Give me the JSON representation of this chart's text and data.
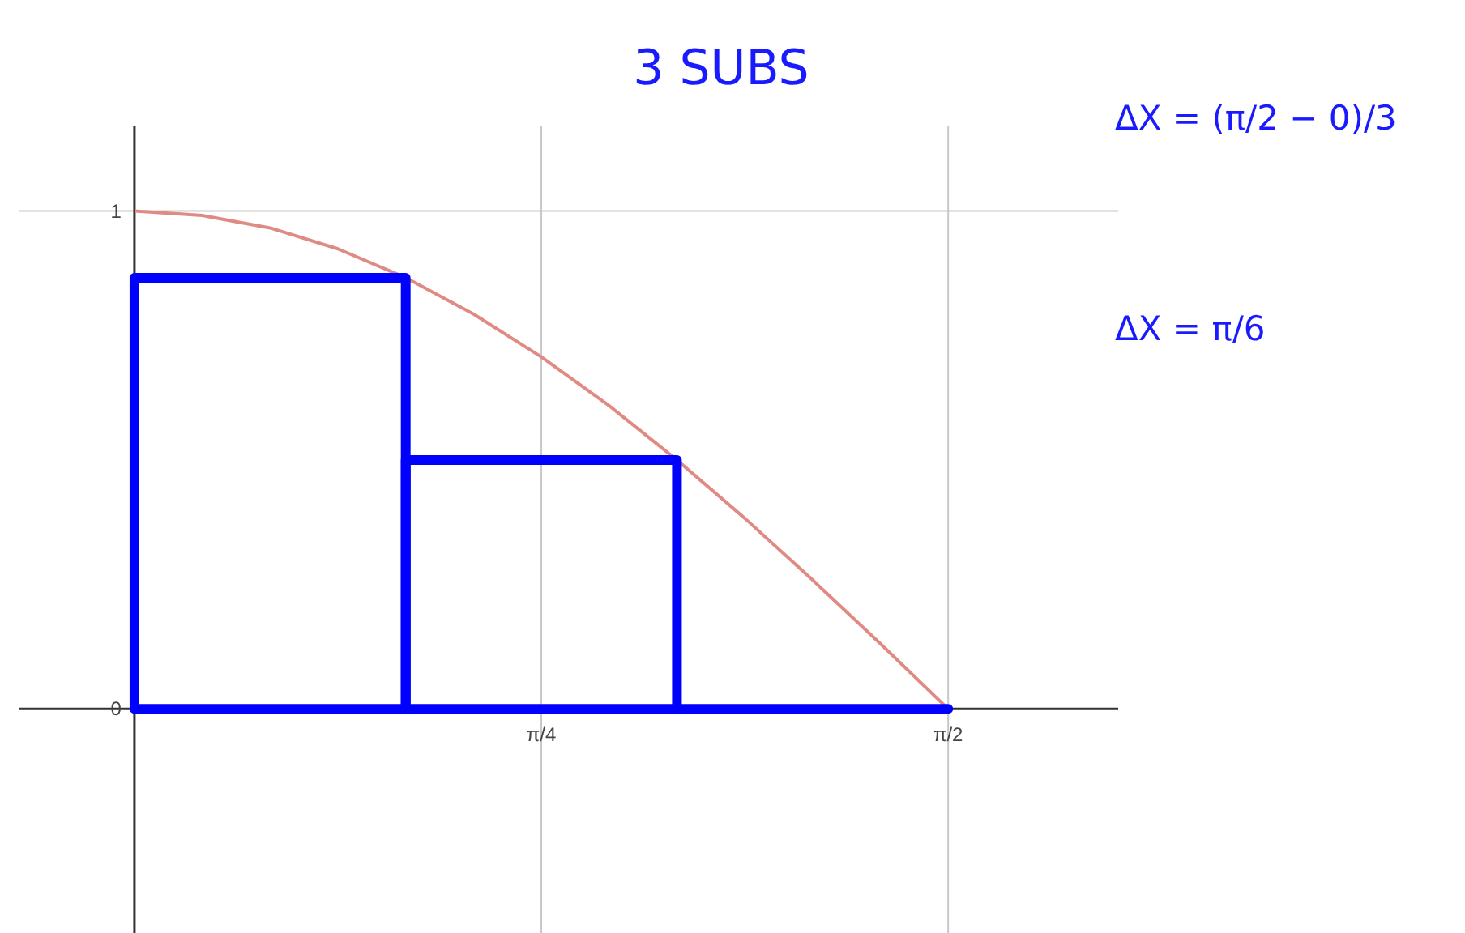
{
  "chart_data": {
    "type": "bar",
    "title": "3 SUBS",
    "annotations": [
      "ΔX = (π/2 − 0)/3",
      "ΔX = π/6"
    ],
    "xlim": [
      -0.222,
      1.899
    ],
    "ylim": [
      -0.45,
      1.17
    ],
    "xticks": [
      {
        "value": 0,
        "label": null
      },
      {
        "value": 0.7854,
        "label": "π/4"
      },
      {
        "value": 1.5708,
        "label": "π/2"
      }
    ],
    "yticks": [
      0,
      1
    ],
    "grid": true,
    "series": [
      {
        "type": "line",
        "color": "#e08a84",
        "x": [
          0,
          0.1309,
          0.2618,
          0.3927,
          0.5236,
          0.6545,
          0.7854,
          0.9163,
          1.0472,
          1.1781,
          1.309,
          1.4399,
          1.5708
        ],
        "values": [
          1,
          0.991,
          0.966,
          0.924,
          0.866,
          0.793,
          0.707,
          0.609,
          0.5,
          0.383,
          0.259,
          0.131,
          0
        ]
      },
      {
        "color": "#0000ff",
        "x": [
          0.2618,
          0.7854,
          1.309
        ],
        "values": [
          0.866,
          0.5,
          0
        ]
      }
    ]
  }
}
